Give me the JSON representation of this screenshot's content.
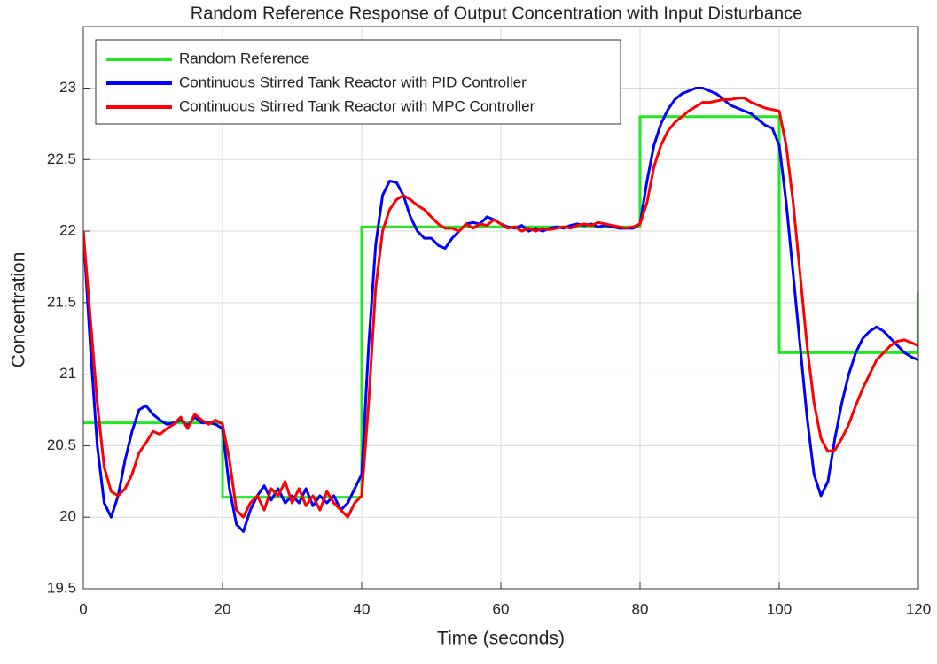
{
  "chart_data": {
    "type": "line",
    "title": "Random Reference Response of Output Concentration with Input Disturbance",
    "xlabel": "Time (seconds)",
    "ylabel": "Concentration",
    "xlim": [
      0,
      120
    ],
    "xticks": [
      0,
      20,
      40,
      60,
      80,
      100,
      120
    ],
    "ylim": [
      19.5,
      23.43
    ],
    "yticks": [
      19.5,
      20,
      20.5,
      21,
      21.5,
      22,
      22.5,
      23
    ],
    "grid": true,
    "legend": "top-left",
    "x": [
      0,
      1,
      2,
      3,
      4,
      5,
      6,
      7,
      8,
      9,
      10,
      11,
      12,
      13,
      14,
      15,
      16,
      17,
      18,
      19,
      20,
      21,
      22,
      23,
      24,
      25,
      26,
      27,
      28,
      29,
      30,
      31,
      32,
      33,
      34,
      35,
      36,
      37,
      38,
      39,
      40,
      41,
      42,
      43,
      44,
      45,
      46,
      47,
      48,
      49,
      50,
      51,
      52,
      53,
      54,
      55,
      56,
      57,
      58,
      59,
      60,
      61,
      62,
      63,
      64,
      65,
      66,
      67,
      68,
      69,
      70,
      71,
      72,
      73,
      74,
      75,
      76,
      77,
      78,
      79,
      80,
      81,
      82,
      83,
      84,
      85,
      86,
      87,
      88,
      89,
      90,
      91,
      92,
      93,
      94,
      95,
      96,
      97,
      98,
      99,
      100,
      101,
      102,
      103,
      104,
      105,
      106,
      107,
      108,
      109,
      110,
      111,
      112,
      113,
      114,
      115,
      116,
      117,
      118,
      119,
      120
    ],
    "series": [
      {
        "name": "Random Reference",
        "color": "#22e622",
        "x": [
          0,
          20,
          20,
          40,
          40,
          80,
          80,
          100,
          100,
          120,
          120
        ],
        "values": [
          20.66,
          20.66,
          20.14,
          20.14,
          22.03,
          22.03,
          22.8,
          22.8,
          21.15,
          21.15,
          21.57
        ]
      },
      {
        "name": "Continuous Stirred Tank Reactor with PID Controller",
        "color": "#0000ff",
        "values": [
          22.0,
          21.2,
          20.5,
          20.1,
          20.0,
          20.15,
          20.4,
          20.6,
          20.75,
          20.78,
          20.72,
          20.68,
          20.65,
          20.66,
          20.68,
          20.64,
          20.7,
          20.66,
          20.66,
          20.65,
          20.62,
          20.2,
          19.95,
          19.9,
          20.05,
          20.15,
          20.22,
          20.12,
          20.2,
          20.1,
          20.15,
          20.1,
          20.2,
          20.08,
          20.15,
          20.1,
          20.15,
          20.05,
          20.1,
          20.2,
          20.3,
          21.2,
          21.9,
          22.25,
          22.35,
          22.34,
          22.25,
          22.1,
          22.0,
          21.95,
          21.95,
          21.9,
          21.88,
          21.95,
          22.0,
          22.05,
          22.06,
          22.05,
          22.1,
          22.08,
          22.05,
          22.03,
          22.02,
          22.04,
          22.0,
          22.02,
          22.0,
          22.02,
          22.03,
          22.02,
          22.04,
          22.05,
          22.04,
          22.05,
          22.03,
          22.04,
          22.03,
          22.02,
          22.02,
          22.02,
          22.05,
          22.35,
          22.6,
          22.75,
          22.85,
          22.92,
          22.96,
          22.98,
          23.0,
          23.0,
          22.98,
          22.96,
          22.92,
          22.88,
          22.86,
          22.84,
          22.82,
          22.78,
          22.74,
          22.72,
          22.6,
          22.2,
          21.7,
          21.2,
          20.7,
          20.3,
          20.15,
          20.25,
          20.55,
          20.8,
          21.0,
          21.15,
          21.25,
          21.3,
          21.33,
          21.3,
          21.25,
          21.2,
          21.15,
          21.12,
          21.1
        ]
      },
      {
        "name": "Continuous Stirred Tank Reactor with MPC Controller",
        "color": "#ff0000",
        "values": [
          22.0,
          21.4,
          20.8,
          20.35,
          20.18,
          20.15,
          20.2,
          20.3,
          20.45,
          20.52,
          20.6,
          20.58,
          20.62,
          20.65,
          20.7,
          20.62,
          20.72,
          20.68,
          20.65,
          20.68,
          20.65,
          20.4,
          20.05,
          20.0,
          20.1,
          20.15,
          20.05,
          20.2,
          20.15,
          20.25,
          20.1,
          20.2,
          20.08,
          20.15,
          20.05,
          20.18,
          20.1,
          20.05,
          20.0,
          20.1,
          20.15,
          20.8,
          21.6,
          22.0,
          22.15,
          22.22,
          22.25,
          22.22,
          22.18,
          22.15,
          22.1,
          22.05,
          22.02,
          22.02,
          22.0,
          22.05,
          22.02,
          22.05,
          22.04,
          22.08,
          22.05,
          22.02,
          22.03,
          22.0,
          22.02,
          22.0,
          22.02,
          22.01,
          22.02,
          22.03,
          22.02,
          22.04,
          22.05,
          22.04,
          22.06,
          22.05,
          22.04,
          22.03,
          22.02,
          22.03,
          22.05,
          22.2,
          22.45,
          22.6,
          22.7,
          22.76,
          22.8,
          22.84,
          22.87,
          22.9,
          22.9,
          22.91,
          22.92,
          22.92,
          22.93,
          22.93,
          22.9,
          22.88,
          22.86,
          22.85,
          22.84,
          22.6,
          22.2,
          21.7,
          21.2,
          20.8,
          20.55,
          20.46,
          20.47,
          20.55,
          20.65,
          20.78,
          20.9,
          21.0,
          21.1,
          21.15,
          21.2,
          21.23,
          21.24,
          21.22,
          21.2
        ]
      }
    ]
  }
}
